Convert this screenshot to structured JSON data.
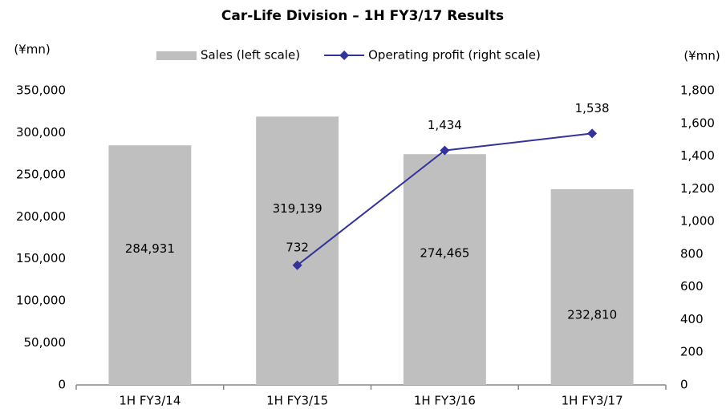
{
  "chart_data": {
    "type": "bar_line",
    "title": "Car-Life Division – 1H FY3/17 Results",
    "y_label": "(¥mn)",
    "y2_label": "(¥mn)",
    "categories": [
      "1H FY3/14",
      "1H FY3/15",
      "1H FY3/16",
      "1H FY3/17"
    ],
    "series": [
      {
        "name": "Sales (left scale)",
        "type": "bar",
        "color": "#bfbfbf",
        "axis": "y",
        "values": [
          284931,
          319139,
          274465,
          232810
        ],
        "value_labels": [
          "284,931",
          "319,139",
          "274,465",
          "232,810"
        ]
      },
      {
        "name": "Operating profit (right scale)",
        "type": "line",
        "color": "#333399",
        "axis": "y2",
        "values": [
          null,
          732,
          1434,
          1538
        ],
        "value_labels": [
          null,
          "732",
          "1,434",
          "1,538"
        ]
      }
    ],
    "ylim": [
      0,
      350000
    ],
    "yticks": [
      0,
      {
        "value": 50000,
        "label": "50,000"
      },
      {
        "value": 100000,
        "label": "100,000"
      },
      {
        "value": 150000,
        "label": "150,000"
      },
      {
        "value": 200000,
        "label": "200,000"
      },
      {
        "value": 250000,
        "label": "250,000"
      },
      {
        "value": 300000,
        "label": "300,000"
      },
      {
        "value": 350000,
        "label": "350,000"
      }
    ],
    "y2lim": [
      0,
      1800
    ],
    "y2ticks": [
      0,
      200,
      400,
      600,
      800,
      {
        "value": 1000,
        "label": "1,000"
      },
      {
        "value": 1200,
        "label": "1,200"
      },
      {
        "value": 1400,
        "label": "1,400"
      },
      {
        "value": 1600,
        "label": "1,600"
      },
      {
        "value": 1800,
        "label": "1,800"
      }
    ],
    "grid": false,
    "legend": "top"
  }
}
